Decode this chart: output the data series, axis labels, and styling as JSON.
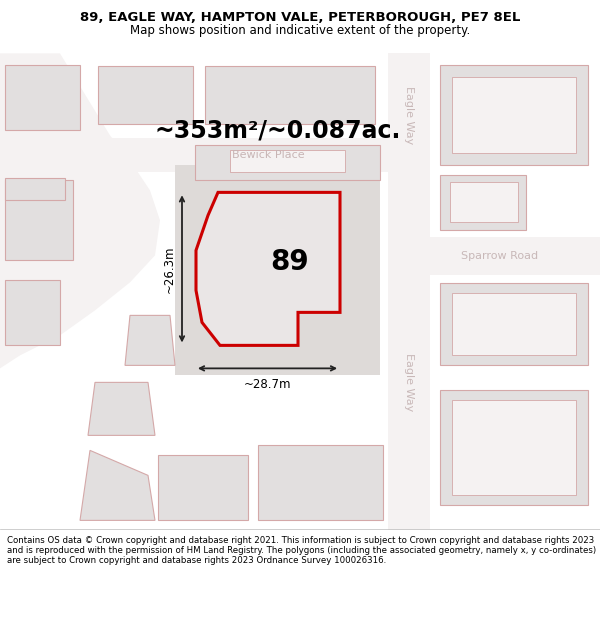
{
  "title": "89, EAGLE WAY, HAMPTON VALE, PETERBOROUGH, PE7 8EL",
  "subtitle": "Map shows position and indicative extent of the property.",
  "footer": "Contains OS data © Crown copyright and database right 2021. This information is subject to Crown copyright and database rights 2023 and is reproduced with the permission of HM Land Registry. The polygons (including the associated geometry, namely x, y co-ordinates) are subject to Crown copyright and database rights 2023 Ordnance Survey 100026316.",
  "map_bg": "#eeebeb",
  "building_fill": "#e2dfdf",
  "building_edge": "#d4a8a8",
  "road_bg": "#f5f2f2",
  "highlight_fill": "#eae6e6",
  "highlight_edge": "#cc0000",
  "dim_color": "#222222",
  "road_label_color": "#c8b8b8",
  "area_text": "~353m²/~0.087ac.",
  "number_label": "89",
  "dim_width": "~28.7m",
  "dim_height": "~26.3m",
  "road_label_top": "Eagle Way",
  "road_label_bottom": "Eagle Way",
  "road_label_right": "Sparrow Road",
  "street_label_mid": "Bewick Place"
}
